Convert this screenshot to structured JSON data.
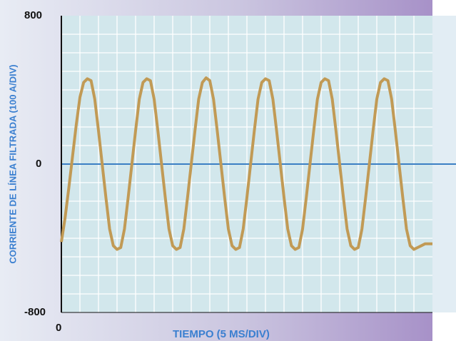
{
  "chart_data": {
    "type": "line",
    "title": "",
    "xlabel": "TIEMPO (5 MS/DIV)",
    "ylabel": "CORRIENTE DE LÍNEA FILTRADA (100 A/DIV)",
    "y_tick_labels": [
      "800",
      "0",
      "-800"
    ],
    "x_tick_labels": [
      "0"
    ],
    "ylim": [
      -800,
      800
    ],
    "xlim": [
      0,
      100
    ],
    "x_unit": "ms",
    "grid": true,
    "colors": {
      "waveform": "#c19a55",
      "zero_line": "#3b7fc4",
      "plot_bg": "#d2e7ec",
      "grid": "#ffffff",
      "axis_title": "#3a7fd0"
    },
    "series": [
      {
        "values_x": [
          0,
          1,
          2,
          3,
          4,
          5,
          6,
          7,
          8,
          9,
          10,
          11,
          12,
          13,
          14,
          15,
          16,
          17,
          18,
          19,
          20,
          21,
          22,
          23,
          24,
          25,
          26,
          27,
          28,
          29,
          30,
          31,
          32,
          33,
          34,
          35,
          36,
          37,
          38,
          39,
          40,
          41,
          42,
          43,
          44,
          45,
          46,
          47,
          48,
          49,
          50,
          51,
          52,
          53,
          54,
          55,
          56,
          57,
          58,
          59,
          60,
          61,
          62,
          63,
          64,
          65,
          66,
          67,
          68,
          69,
          70,
          71,
          72,
          73,
          74,
          75,
          76,
          77,
          78,
          79,
          80,
          81,
          82,
          83,
          84,
          85,
          86,
          87,
          88,
          89,
          90,
          91,
          92,
          93,
          94,
          95,
          96,
          97,
          98,
          99,
          100
        ],
        "values_y": [
          -420,
          -290,
          -130,
          40,
          210,
          360,
          440,
          460,
          450,
          350,
          180,
          0,
          -180,
          -350,
          -440,
          -460,
          -450,
          -350,
          -180,
          0,
          180,
          350,
          440,
          460,
          450,
          350,
          180,
          0,
          -180,
          -350,
          -440,
          -460,
          -450,
          -350,
          -180,
          0,
          180,
          350,
          440,
          465,
          450,
          350,
          180,
          0,
          -180,
          -350,
          -440,
          -460,
          -450,
          -350,
          -180,
          0,
          180,
          350,
          440,
          460,
          450,
          350,
          180,
          0,
          -180,
          -350,
          -440,
          -460,
          -450,
          -350,
          -180,
          0,
          180,
          350,
          440,
          460,
          450,
          350,
          180,
          0,
          -180,
          -350,
          -440,
          -460,
          -450,
          -350,
          -180,
          0,
          180,
          350,
          440,
          460,
          450,
          350,
          180,
          0,
          -180,
          -350,
          -440,
          -460,
          -450,
          -440,
          -430,
          -430,
          -430
        ]
      }
    ]
  }
}
